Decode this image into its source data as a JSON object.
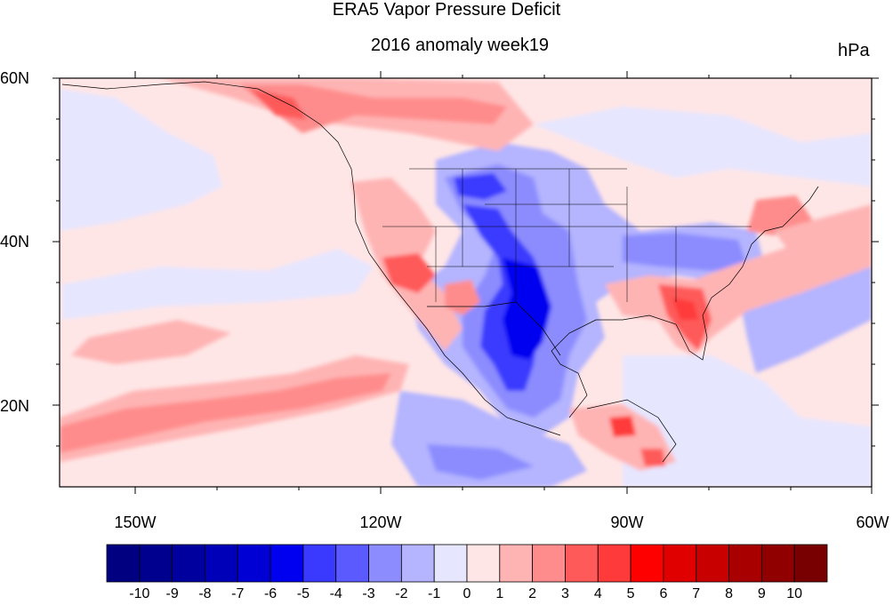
{
  "title": "ERA5 Vapor Pressure Deficit",
  "subtitle": "2016 anomaly week19",
  "units": "hPa",
  "map": {
    "projection": "cylindrical equidistant",
    "lon_range": [
      -159,
      -61
    ],
    "lat_range": [
      10,
      60
    ],
    "lat_ticks": [
      {
        "value": 60,
        "label": "60N"
      },
      {
        "value": 40,
        "label": "40N"
      },
      {
        "value": 20,
        "label": "20N"
      }
    ],
    "lon_ticks": [
      {
        "value": -150,
        "label": "150W"
      },
      {
        "value": -120,
        "label": "120W"
      },
      {
        "value": -90,
        "label": "90W"
      },
      {
        "value": -60,
        "label": "60W"
      }
    ],
    "dominant_field": "slightly positive (light pink) over most of the Pacific and Canada",
    "regions": [
      {
        "name": "Southern Plains / Texas / NE Mexico",
        "sign": "negative",
        "approx_level": -6
      },
      {
        "name": "Northern Rockies / Montana",
        "sign": "negative",
        "approx_level": -4
      },
      {
        "name": "Ohio Valley / Mid-Atlantic",
        "sign": "negative",
        "approx_level": -2
      },
      {
        "name": "Southern Mexico (Pacific side)",
        "sign": "negative",
        "approx_level": -2
      },
      {
        "name": "Southeast US (Georgia / Florida)",
        "sign": "positive",
        "approx_level": 5
      },
      {
        "name": "Alaska panhandle / coastal BC",
        "sign": "positive",
        "approx_level": 4
      },
      {
        "name": "Great Basin / Nevada",
        "sign": "positive",
        "approx_level": 4
      },
      {
        "name": "Subtropical east Pacific band",
        "sign": "positive",
        "approx_level": 3
      },
      {
        "name": "Yucatan / Central America",
        "sign": "positive",
        "approx_level": 5
      },
      {
        "name": "Subtropical west Atlantic",
        "sign": "negative",
        "approx_level": -1
      }
    ]
  },
  "colorbar": {
    "levels": [
      -10,
      -9,
      -8,
      -7,
      -6,
      -5,
      -4,
      -3,
      -2,
      -1,
      0,
      1,
      2,
      3,
      4,
      5,
      6,
      7,
      8,
      9,
      10
    ],
    "colors": [
      "#000080",
      "#00008f",
      "#00009e",
      "#0000b8",
      "#0000d4",
      "#0000f0",
      "#3a3aff",
      "#5a5aff",
      "#8c8cff",
      "#b4b4ff",
      "#e6e6ff",
      "#ffe6e6",
      "#ffb4b4",
      "#ff8c8c",
      "#ff5a5a",
      "#ff3a3a",
      "#ff0000",
      "#e00000",
      "#c80000",
      "#a80000",
      "#900000",
      "#780000"
    ]
  }
}
